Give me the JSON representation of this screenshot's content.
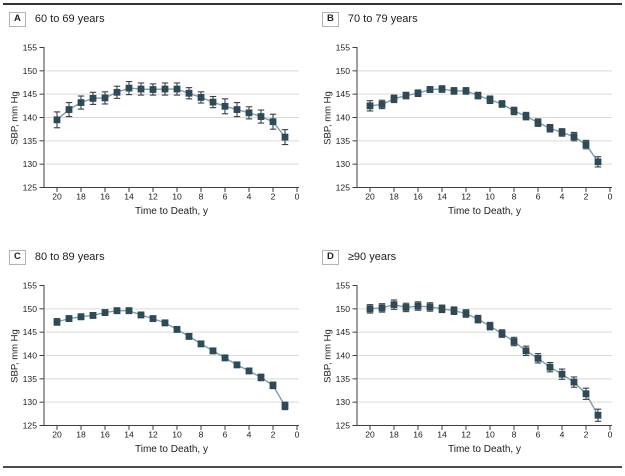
{
  "colors": {
    "marker": "#2c4a58",
    "trend_line": "#7f9dab",
    "error_bar": "#3e3e3e",
    "gridline": "#d9d9d9",
    "axis": "#3f3f3f",
    "text": "#1d1d1d",
    "rule_top": "#333333",
    "rule_bottom": "#4b4b4b"
  },
  "chart_data": [
    {
      "type": "line",
      "panel_letter": "A",
      "title": "60 to 69 years",
      "xlabel": "Time to Death, y",
      "ylabel": "SBP, mm Hg",
      "xlim": [
        20,
        0
      ],
      "ylim": [
        125,
        155
      ],
      "xticks": [
        20,
        18,
        16,
        14,
        12,
        10,
        8,
        6,
        4,
        2,
        0
      ],
      "yticks": [
        125,
        130,
        135,
        140,
        145,
        150,
        155
      ],
      "grid": "horizontal",
      "marker": "square",
      "x": [
        20,
        19,
        18,
        17,
        16,
        15,
        14,
        13,
        12,
        11,
        10,
        9,
        8,
        7,
        6,
        5,
        4,
        3,
        2,
        1
      ],
      "y": [
        139.5,
        141.7,
        143.2,
        144.1,
        144.2,
        145.4,
        146.3,
        146.1,
        146.0,
        146.1,
        146.1,
        145.2,
        144.3,
        143.3,
        142.4,
        141.7,
        141.0,
        140.2,
        139.1,
        135.8
      ],
      "err": [
        1.7,
        1.5,
        1.4,
        1.3,
        1.3,
        1.3,
        1.4,
        1.3,
        1.2,
        1.3,
        1.3,
        1.2,
        1.2,
        1.2,
        1.6,
        1.5,
        1.3,
        1.4,
        1.6,
        1.6
      ]
    },
    {
      "type": "line",
      "panel_letter": "B",
      "title": "70 to 79 years",
      "xlabel": "Time to Death, y",
      "ylabel": "SBP, mm Hg",
      "xlim": [
        20,
        0
      ],
      "ylim": [
        125,
        155
      ],
      "xticks": [
        20,
        18,
        16,
        14,
        12,
        10,
        8,
        6,
        4,
        2,
        0
      ],
      "yticks": [
        125,
        130,
        135,
        140,
        145,
        150,
        155
      ],
      "grid": "horizontal",
      "marker": "square",
      "x": [
        20,
        19,
        18,
        17,
        16,
        15,
        14,
        13,
        12,
        11,
        10,
        9,
        8,
        7,
        6,
        5,
        4,
        3,
        2,
        1
      ],
      "y": [
        142.5,
        142.8,
        144.0,
        144.7,
        145.2,
        146.0,
        146.1,
        145.7,
        145.7,
        144.7,
        143.8,
        142.9,
        141.4,
        140.3,
        138.9,
        137.7,
        136.8,
        135.9,
        134.2,
        130.5
      ],
      "err": [
        1.1,
        0.9,
        0.8,
        0.7,
        0.7,
        0.6,
        0.7,
        0.7,
        0.7,
        0.7,
        0.8,
        0.7,
        0.8,
        0.8,
        0.8,
        0.8,
        0.8,
        0.9,
        0.9,
        1.1
      ]
    },
    {
      "type": "line",
      "panel_letter": "C",
      "title": "80 to 89 years",
      "xlabel": "Time to Death, y",
      "ylabel": "SBP, mm Hg",
      "xlim": [
        20,
        0
      ],
      "ylim": [
        125,
        155
      ],
      "xticks": [
        20,
        18,
        16,
        14,
        12,
        10,
        8,
        6,
        4,
        2,
        0
      ],
      "yticks": [
        125,
        130,
        135,
        140,
        145,
        150,
        155
      ],
      "grid": "horizontal",
      "marker": "square",
      "x": [
        20,
        19,
        18,
        17,
        16,
        15,
        14,
        13,
        12,
        11,
        10,
        9,
        8,
        7,
        6,
        5,
        4,
        3,
        2,
        1
      ],
      "y": [
        147.2,
        147.9,
        148.3,
        148.6,
        149.2,
        149.6,
        149.6,
        148.7,
        147.9,
        147.0,
        145.6,
        144.1,
        142.5,
        141.0,
        139.5,
        138.0,
        136.7,
        135.3,
        133.6,
        129.2
      ],
      "err": [
        0.7,
        0.6,
        0.6,
        0.6,
        0.6,
        0.6,
        0.6,
        0.6,
        0.6,
        0.6,
        0.6,
        0.6,
        0.6,
        0.6,
        0.6,
        0.6,
        0.6,
        0.7,
        0.7,
        0.8
      ]
    },
    {
      "type": "line",
      "panel_letter": "D",
      "title": "≥90 years",
      "xlabel": "Time to Death, y",
      "ylabel": "SBP, mm Hg",
      "xlim": [
        20,
        0
      ],
      "ylim": [
        125,
        155
      ],
      "xticks": [
        20,
        18,
        16,
        14,
        12,
        10,
        8,
        6,
        4,
        2,
        0
      ],
      "yticks": [
        125,
        130,
        135,
        140,
        145,
        150,
        155
      ],
      "grid": "horizontal",
      "marker": "square",
      "x": [
        20,
        19,
        18,
        17,
        16,
        15,
        14,
        13,
        12,
        11,
        10,
        9,
        8,
        7,
        6,
        5,
        4,
        3,
        2,
        1
      ],
      "y": [
        150.0,
        150.2,
        150.9,
        150.3,
        150.6,
        150.4,
        150.0,
        149.6,
        149.0,
        147.8,
        146.3,
        144.7,
        143.0,
        141.0,
        139.4,
        137.5,
        136.0,
        134.3,
        131.8,
        127.2
      ],
      "err": [
        0.9,
        0.9,
        1.0,
        0.9,
        0.9,
        0.9,
        0.8,
        0.8,
        0.8,
        0.8,
        0.8,
        0.8,
        0.9,
        1.0,
        1.0,
        1.0,
        1.1,
        1.1,
        1.2,
        1.3
      ]
    }
  ]
}
